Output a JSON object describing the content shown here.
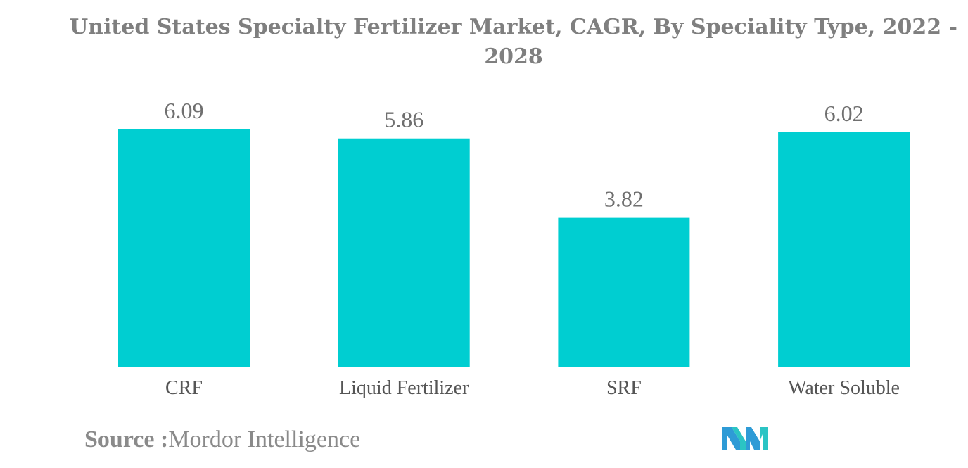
{
  "chart_data": {
    "type": "bar",
    "title": "United States Specialty Fertilizer Market, CAGR, By Speciality Type, 2022 - 2028",
    "categories": [
      "CRF",
      "Liquid Fertilizer",
      "SRF",
      "Water Soluble"
    ],
    "values": [
      6.09,
      5.86,
      3.82,
      6.02
    ],
    "value_labels": [
      "6.09",
      "5.86",
      "3.82",
      "6.02"
    ],
    "xlabel": "",
    "ylabel": "",
    "ylim": [
      0,
      6.09
    ],
    "grid": false,
    "bar_color": "#00CED1"
  },
  "source": {
    "key": "Source :",
    "value": "Mordor Intelligence"
  },
  "logo": {
    "icon": "mordor-intelligence-logo-icon",
    "colors": [
      "#2E9BD6",
      "#2BC4C4"
    ]
  }
}
